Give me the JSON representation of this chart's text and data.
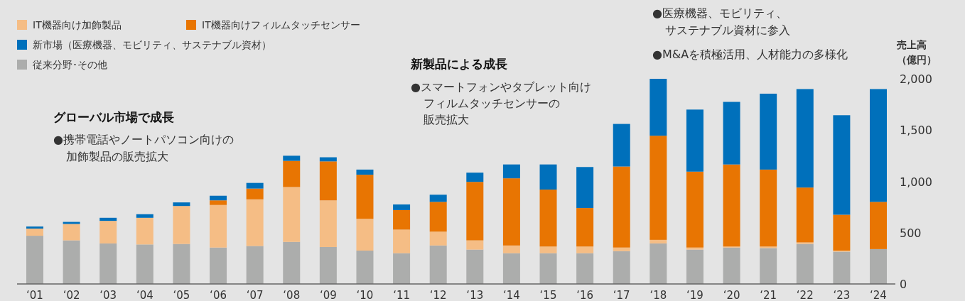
{
  "chart_data": {
    "type": "bar",
    "stacked": true,
    "categories": [
      "‘01",
      "‘02",
      "‘03",
      "‘04",
      "‘05",
      "‘06",
      "‘07",
      "‘08",
      "‘09",
      "‘10",
      "‘11",
      "‘12",
      "‘13",
      "‘14",
      "‘15",
      "‘16",
      "‘17",
      "‘18",
      "‘19",
      "‘20",
      "‘21",
      "‘22",
      "‘23",
      "‘24"
    ],
    "series": [
      {
        "name": "従来分野･その他",
        "color": "#acadac",
        "values": [
          470,
          425,
          395,
          385,
          390,
          355,
          370,
          410,
          360,
          325,
          300,
          375,
          335,
          300,
          300,
          300,
          320,
          395,
          335,
          355,
          350,
          390,
          315,
          340
        ]
      },
      {
        "name": "IT機器向け加飾製品",
        "color": "#f5bd85",
        "values": [
          70,
          160,
          220,
          260,
          370,
          415,
          455,
          535,
          455,
          310,
          230,
          135,
          90,
          75,
          65,
          65,
          35,
          35,
          20,
          10,
          15,
          15,
          10,
          0
        ]
      },
      {
        "name": "IT機器向けフィルムタッチセンサー",
        "color": "#e87502",
        "values": [
          0,
          0,
          0,
          0,
          0,
          45,
          105,
          255,
          380,
          430,
          190,
          290,
          570,
          655,
          555,
          375,
          790,
          1015,
          740,
          800,
          750,
          535,
          350,
          460
        ]
      },
      {
        "name": "新市場（医療機器、モビリティ、サステナブル資材）",
        "color": "#0070bb",
        "values": [
          20,
          20,
          30,
          35,
          35,
          45,
          55,
          50,
          40,
          50,
          55,
          70,
          90,
          135,
          245,
          400,
          415,
          555,
          605,
          610,
          740,
          960,
          970,
          1100
        ]
      }
    ],
    "ylabel": "売上高（億円）",
    "ylim": [
      0,
      2000
    ],
    "yticks": [
      {
        "value": 0,
        "label": "0"
      },
      {
        "value": 500,
        "label": "500"
      },
      {
        "value": 1000,
        "label": "1,000"
      },
      {
        "value": 1500,
        "label": "1,500"
      },
      {
        "value": 2000,
        "label": "2,000"
      }
    ],
    "grid": false,
    "legend": "top left",
    "annotations": [
      "グローバル市場で成長",
      "●携帯電話やノートパソコン向けの",
      "加飾製品の販売拡大",
      "新製品による成長",
      "●スマートフォンやタブレット向け",
      "フィルムタッチセンサーの",
      "販売拡大",
      "●医療機器、モビリティ、",
      "サステナブル資材に参入",
      "●M&Aを積極活用、人材能力の多様化"
    ]
  }
}
